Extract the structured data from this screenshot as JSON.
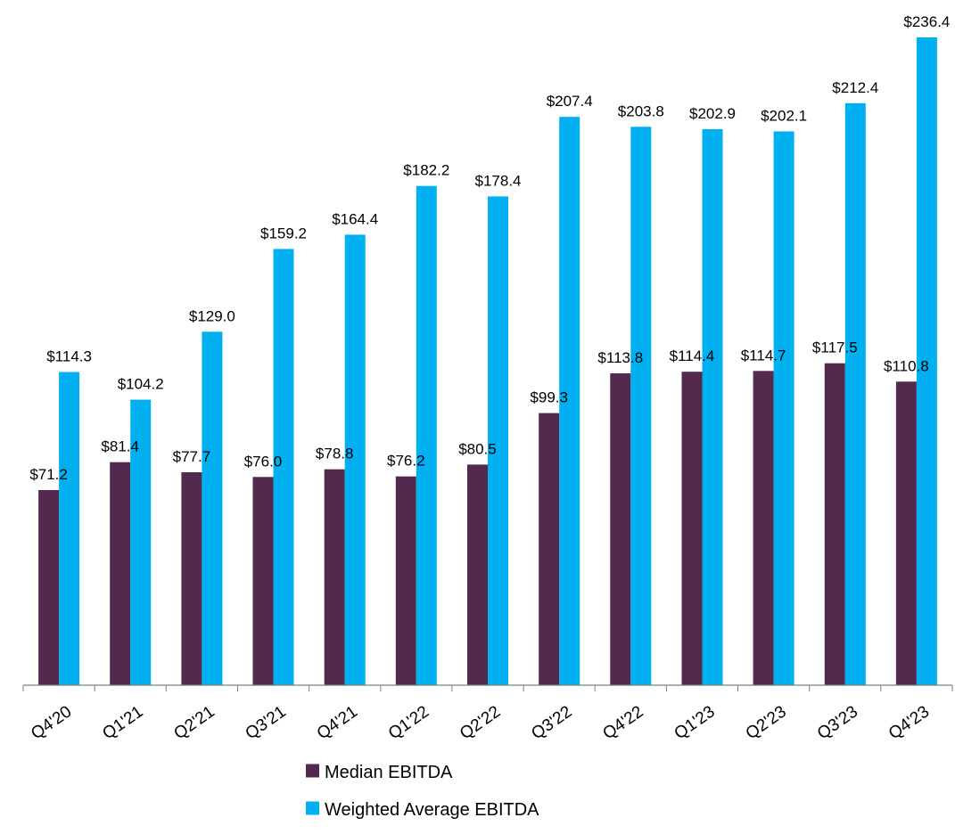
{
  "chart_data": {
    "type": "bar",
    "categories": [
      "Q4'20",
      "Q1'21",
      "Q2'21",
      "Q3'21",
      "Q4'21",
      "Q1'22",
      "Q2'22",
      "Q3'22",
      "Q4'22",
      "Q1'23",
      "Q2'23",
      "Q3'23",
      "Q4'23"
    ],
    "series": [
      {
        "name": "Median EBITDA",
        "color": "#532A4E",
        "values": [
          71.2,
          81.4,
          77.7,
          76.0,
          78.8,
          76.2,
          80.5,
          99.3,
          113.8,
          114.4,
          114.7,
          117.5,
          110.8
        ],
        "labels": [
          "$71.2",
          "$81.4",
          "$77.7",
          "$76.0",
          "$78.8",
          "$76.2",
          "$80.5",
          "$99.3",
          "$113.8",
          "$114.4",
          "$114.7",
          "$117.5",
          "$110.8"
        ]
      },
      {
        "name": "Weighted Average EBITDA",
        "color": "#00B0F0",
        "values": [
          114.3,
          104.2,
          129.0,
          159.2,
          164.4,
          182.2,
          178.4,
          207.4,
          203.8,
          202.9,
          202.1,
          212.4,
          236.4
        ],
        "labels": [
          "$114.3",
          "$104.2",
          "$129.0",
          "$159.2",
          "$164.4",
          "$182.2",
          "$178.4",
          "$207.4",
          "$203.8",
          "$202.9",
          "$202.1",
          "$212.4",
          "$236.4"
        ]
      }
    ],
    "title": "",
    "xlabel": "",
    "ylabel": "",
    "ylim": [
      0,
      240
    ],
    "grid": false,
    "legend_position": "bottom-center",
    "axis_color": "#7F7F7F"
  }
}
